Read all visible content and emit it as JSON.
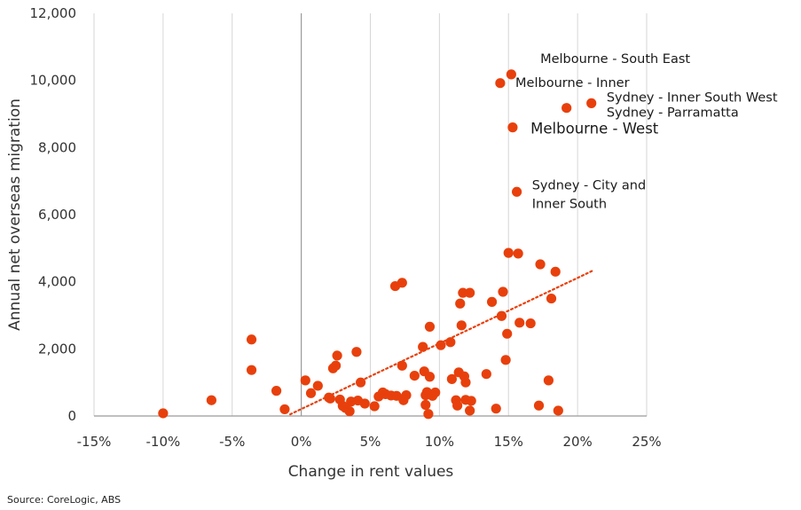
{
  "chart_data": {
    "type": "scatter",
    "title": "",
    "xlabel": "Change in rent values",
    "ylabel": "Annual net overseas migration",
    "xlim": [
      -15,
      25
    ],
    "ylim": [
      0,
      12000
    ],
    "x_ticks": [
      "-15%",
      "-10%",
      "-5%",
      "0%",
      "5%",
      "10%",
      "15%",
      "20%",
      "25%"
    ],
    "y_ticks": [
      "0",
      "2,000",
      "4,000",
      "6,000",
      "8,000",
      "10,000",
      "12,000"
    ],
    "grid": "vertical",
    "point_color": "#e8400c",
    "trendline": {
      "style": "dotted",
      "color": "#e8400c",
      "from": [
        -0.8,
        50
      ],
      "to": [
        21.2,
        4350
      ]
    },
    "points": [
      [
        -10.0,
        80
      ],
      [
        -6.5,
        470
      ],
      [
        -3.6,
        2280
      ],
      [
        -3.6,
        1370
      ],
      [
        -1.8,
        750
      ],
      [
        -1.2,
        200
      ],
      [
        0.3,
        1060
      ],
      [
        0.7,
        680
      ],
      [
        1.2,
        900
      ],
      [
        2.0,
        550
      ],
      [
        2.1,
        520
      ],
      [
        2.3,
        1420
      ],
      [
        2.5,
        1500
      ],
      [
        2.6,
        1800
      ],
      [
        2.8,
        490
      ],
      [
        3.0,
        300
      ],
      [
        3.2,
        240
      ],
      [
        3.5,
        140
      ],
      [
        3.6,
        430
      ],
      [
        4.0,
        1910
      ],
      [
        4.1,
        460
      ],
      [
        4.3,
        1000
      ],
      [
        4.6,
        370
      ],
      [
        5.3,
        290
      ],
      [
        5.6,
        580
      ],
      [
        5.9,
        700
      ],
      [
        6.1,
        650
      ],
      [
        6.5,
        610
      ],
      [
        6.8,
        3870
      ],
      [
        6.9,
        600
      ],
      [
        7.3,
        3970
      ],
      [
        7.3,
        1500
      ],
      [
        7.4,
        470
      ],
      [
        7.6,
        620
      ],
      [
        8.2,
        1200
      ],
      [
        8.8,
        2060
      ],
      [
        8.9,
        1330
      ],
      [
        9.0,
        620
      ],
      [
        9.0,
        330
      ],
      [
        9.1,
        710
      ],
      [
        9.2,
        60
      ],
      [
        9.3,
        1170
      ],
      [
        9.3,
        2660
      ],
      [
        9.5,
        600
      ],
      [
        9.7,
        700
      ],
      [
        10.1,
        2110
      ],
      [
        10.8,
        2200
      ],
      [
        10.9,
        1100
      ],
      [
        11.2,
        470
      ],
      [
        11.3,
        310
      ],
      [
        11.4,
        1300
      ],
      [
        11.5,
        3350
      ],
      [
        11.6,
        2700
      ],
      [
        11.7,
        3670
      ],
      [
        11.8,
        1180
      ],
      [
        11.9,
        480
      ],
      [
        11.9,
        1000
      ],
      [
        12.2,
        3670
      ],
      [
        12.2,
        160
      ],
      [
        12.3,
        450
      ],
      [
        13.4,
        1250
      ],
      [
        13.8,
        3400
      ],
      [
        14.1,
        220
      ],
      [
        14.5,
        2980
      ],
      [
        14.6,
        3700
      ],
      [
        14.8,
        1670
      ],
      [
        14.9,
        2450
      ],
      [
        15.0,
        4860
      ],
      [
        15.7,
        4840
      ],
      [
        15.8,
        2780
      ],
      [
        16.6,
        2760
      ],
      [
        17.2,
        310
      ],
      [
        17.3,
        4520
      ],
      [
        17.9,
        1060
      ],
      [
        18.1,
        3500
      ],
      [
        18.4,
        4300
      ],
      [
        18.6,
        160
      ],
      [
        14.4,
        9920
      ],
      [
        15.2,
        10180
      ],
      [
        19.2,
        9180
      ],
      [
        21.0,
        9320
      ],
      [
        15.3,
        8600
      ],
      [
        15.6,
        6680
      ]
    ],
    "annotations": [
      {
        "text": "Melbourne - South East",
        "x": 17.3,
        "y": 10650,
        "size": "normal"
      },
      {
        "text": "Melbourne - Inner",
        "x": 15.5,
        "y": 9940,
        "size": "normal"
      },
      {
        "text": "Sydney - Inner South West",
        "x": 22.1,
        "y": 9500,
        "size": "normal"
      },
      {
        "text": "Sydney - Parramatta",
        "x": 22.1,
        "y": 9050,
        "size": "normal"
      },
      {
        "text": "Melbourne - West",
        "x": 16.6,
        "y": 8550,
        "size": "big"
      },
      {
        "text": "Sydney - City and",
        "x": 16.7,
        "y": 6880,
        "size": "normal"
      },
      {
        "text": "Inner South",
        "x": 16.7,
        "y": 6330,
        "size": "normal"
      }
    ]
  },
  "source": "Source: CoreLogic, ABS"
}
